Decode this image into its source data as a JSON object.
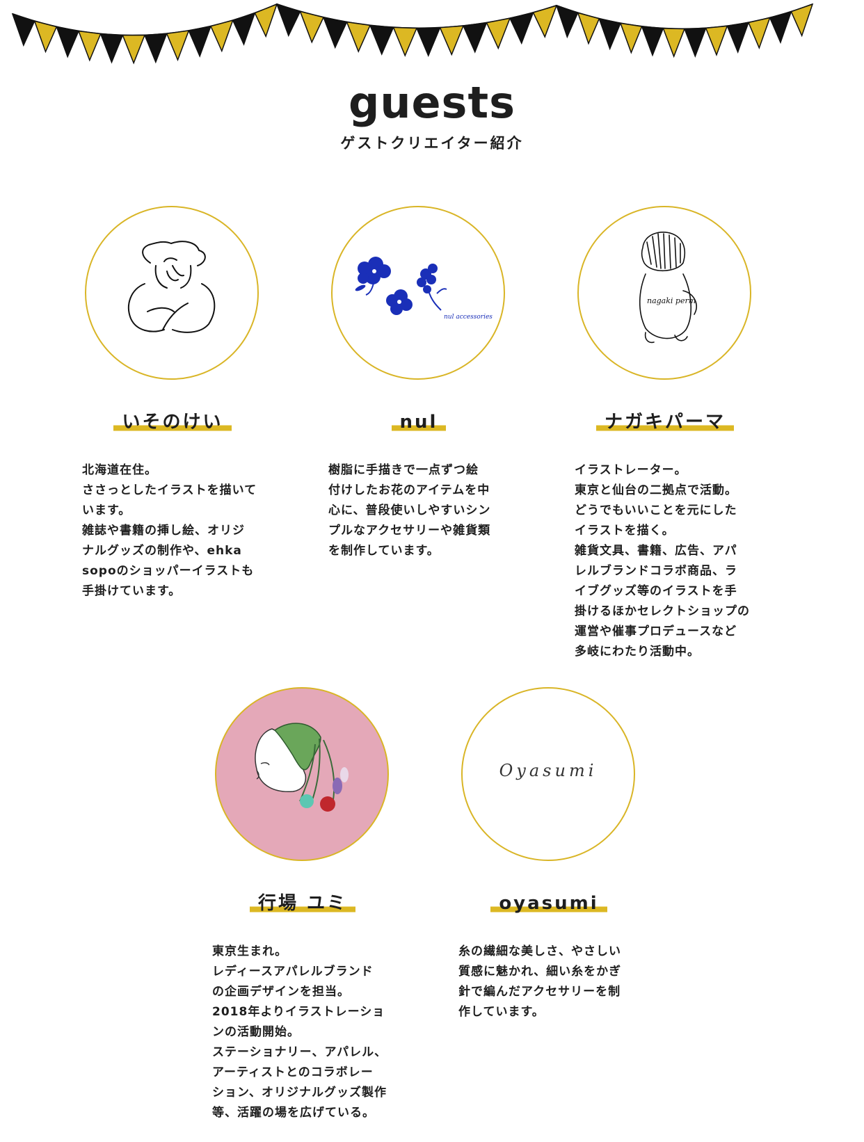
{
  "header": {
    "title": "guests",
    "subtitle": "ゲストクリエイター紹介"
  },
  "colors": {
    "accent": "#dcb823",
    "pennant_dark": "#111111",
    "circle_border": "#d9b526",
    "pink_background": "#e4a8b8"
  },
  "guests": [
    {
      "name": "いそのけい",
      "icon": "woman-face-illustration-icon",
      "description": "北海道在住。\nささっとしたイラストを描いて\nいます。\n雑誌や書籍の挿し絵、オリジ\nナルグッズの制作や、ehka\nsopoのショッパーイラストも\n手掛けています。"
    },
    {
      "name": "nul",
      "icon": "blue-flowers-illustration-icon",
      "logo_text": "nul accessories",
      "description": "樹脂に手描きで一点ずつ絵\n付けしたお花のアイテムを中\n心に、普段使いしやすいシン\nプルなアクセサリーや雑貨類\nを制作しています。"
    },
    {
      "name": "ナガキパーマ",
      "icon": "child-back-illustration-icon",
      "logo_text": "nagaki perm",
      "description": "イラストレーター。\n東京と仙台の二拠点で活動。\nどうでもいいことを元にした\nイラストを描く。\n雑貨文具、書籍、広告、アパ\nレルブランドコラボ商品、ラ\nイブグッズ等のイラストを手\n掛けるほかセレクトショップの\n運営や催事プロデュースなど\n多岐にわたり活動中。"
    },
    {
      "name": "行場 ユミ",
      "icon": "face-with-flowers-illustration-icon",
      "description": "東京生まれ。\nレディースアパレルブランド\nの企画デザインを担当。\n2018年よりイラストレーショ\nンの活動開始。\nステーショナリー、アパレル、\nアーティストとのコラボレー\nション、オリジナルグッズ製作\n等、活躍の場を広げている。"
    },
    {
      "name": "oyasumi",
      "icon": "oyasumi-logo-icon",
      "logo_text": "Oyasumi",
      "description": "糸の繊細な美しさ、やさしい\n質感に魅かれ、細い糸をかぎ\n針で編んだアクセサリーを制\n作しています。"
    }
  ]
}
